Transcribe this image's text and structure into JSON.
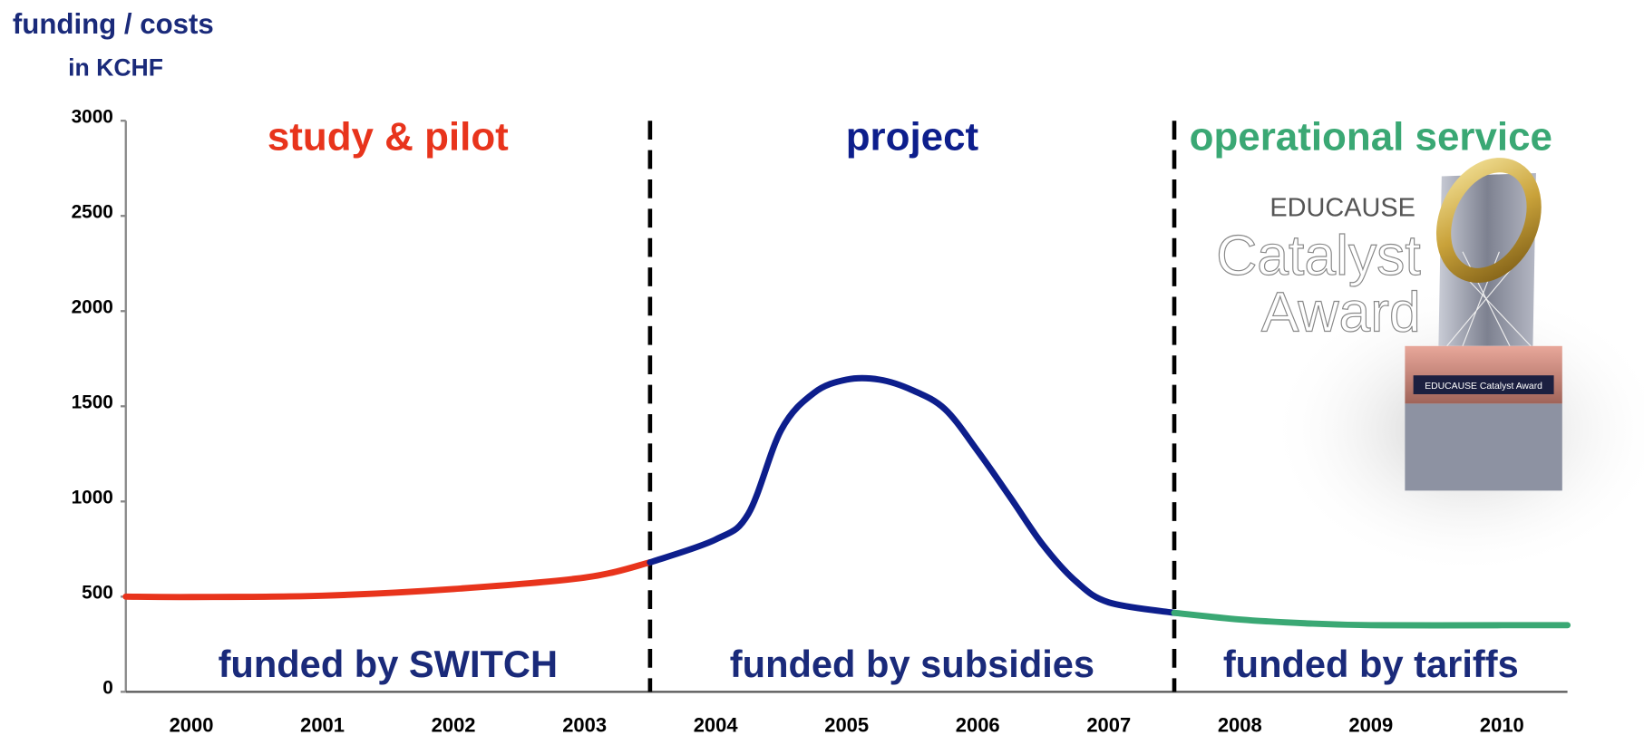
{
  "chart_data": {
    "type": "line",
    "title": "funding / costs",
    "subtitle": "in KCHF",
    "x": [
      1999.5,
      2000,
      2001,
      2002,
      2003,
      2003.5,
      2004,
      2004.25,
      2004.5,
      2004.75,
      2005,
      2005.25,
      2005.5,
      2005.75,
      2006,
      2006.25,
      2006.5,
      2006.75,
      2007,
      2007.5,
      2008,
      2008.5,
      2009,
      2010,
      2010.5
    ],
    "series": [
      {
        "name": "study & pilot",
        "color": "#e8341c",
        "values": [
          500,
          498,
          505,
          540,
          600,
          680,
          null,
          null,
          null,
          null,
          null,
          null,
          null,
          null,
          null,
          null,
          null,
          null,
          null,
          null,
          null,
          null,
          null,
          null,
          null
        ]
      },
      {
        "name": "project",
        "color": "#0d1e8c",
        "values": [
          null,
          null,
          null,
          null,
          null,
          680,
          800,
          935,
          1375,
          1570,
          1640,
          1640,
          1585,
          1485,
          1265,
          1020,
          770,
          580,
          470,
          415,
          null,
          null,
          null,
          null,
          null
        ]
      },
      {
        "name": "operational service",
        "color": "#3aa874",
        "values": [
          null,
          null,
          null,
          null,
          null,
          null,
          null,
          null,
          null,
          null,
          null,
          null,
          null,
          null,
          null,
          null,
          null,
          null,
          null,
          415,
          380,
          360,
          350,
          350,
          350
        ]
      }
    ],
    "funding": [
      "funded by SWITCH",
      "funded by subsidies",
      "funded by tariffs"
    ],
    "phase_boundaries": [
      2003.5,
      2007.5
    ],
    "xlim": [
      1999.5,
      2010.5
    ],
    "xticks": [
      2000,
      2001,
      2002,
      2003,
      2004,
      2005,
      2006,
      2007,
      2008,
      2009,
      2010
    ],
    "ylim": [
      0,
      3000
    ],
    "yticks": [
      0,
      500,
      1000,
      1500,
      2000,
      2500,
      3000
    ],
    "award": {
      "line1": "EDUCAUSE",
      "line2": "Catalyst",
      "line3": "Award",
      "plaque": "EDUCAUSE Catalyst Award"
    }
  }
}
